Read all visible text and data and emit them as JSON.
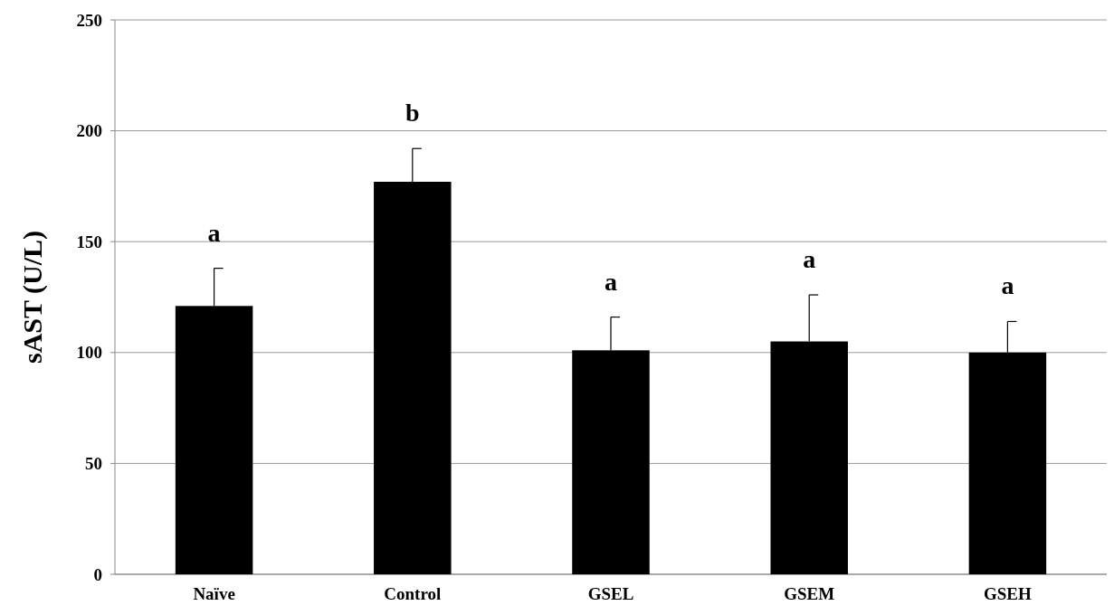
{
  "chart_data": {
    "type": "bar",
    "ylabel": "sAST (U/L)",
    "categories": [
      "Naïve",
      "Control",
      "GSEL",
      "GSEM",
      "GSEH"
    ],
    "values": [
      121,
      177,
      101,
      105,
      100
    ],
    "errors": [
      17,
      15,
      15,
      21,
      14
    ],
    "color": "#000000",
    "ylim": [
      0,
      250
    ],
    "yticks": [
      0,
      50,
      100,
      150,
      200,
      250
    ],
    "grid": "y",
    "annotations": [
      "a",
      "b",
      "a",
      "a",
      "a"
    ]
  }
}
